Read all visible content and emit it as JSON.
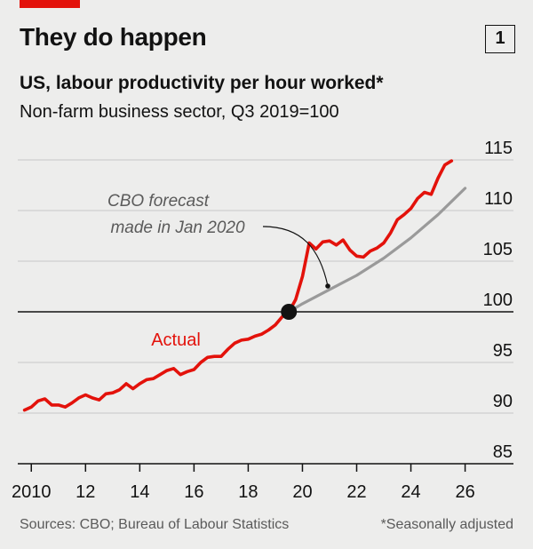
{
  "header": {
    "title": "They do happen",
    "chart_number": "1",
    "subtitle": "US, labour productivity per hour worked*",
    "unit": "Non-farm business sector, Q3 2019=100"
  },
  "footer": {
    "sources": "Sources: CBO; Bureau of Labour Statistics",
    "note": "*Seasonally adjusted"
  },
  "colors": {
    "actual": "#e3120b",
    "forecast": "#9a9a9a",
    "marker": "#121212",
    "background": "#ededec"
  },
  "chart_data": {
    "type": "line",
    "xlim": [
      2009.5,
      2026.8
    ],
    "ylim": [
      85,
      115
    ],
    "xticks": [
      2010,
      2012,
      2014,
      2016,
      2018,
      2020,
      2022,
      2024,
      2026
    ],
    "xtick_labels": [
      "2010",
      "12",
      "14",
      "16",
      "18",
      "20",
      "22",
      "24",
      "26"
    ],
    "yticks": [
      85,
      90,
      95,
      100,
      105,
      110,
      115
    ],
    "ytick_labels": [
      "85",
      "90",
      "95",
      "100",
      "105",
      "110",
      "115"
    ],
    "baseline": 100,
    "grid": true,
    "annotations": {
      "series_label": "Actual",
      "forecast_label_line1": "CBO forecast",
      "forecast_label_line2": "made in Jan 2020",
      "reference_point": {
        "x": 2019.5,
        "y": 100
      }
    },
    "series": [
      {
        "name": "Actual",
        "x": [
          2009.75,
          2010.0,
          2010.25,
          2010.5,
          2010.75,
          2011.0,
          2011.25,
          2011.5,
          2011.75,
          2012.0,
          2012.25,
          2012.5,
          2012.75,
          2013.0,
          2013.25,
          2013.5,
          2013.75,
          2014.0,
          2014.25,
          2014.5,
          2014.75,
          2015.0,
          2015.25,
          2015.5,
          2015.75,
          2016.0,
          2016.25,
          2016.5,
          2016.75,
          2017.0,
          2017.25,
          2017.5,
          2017.75,
          2018.0,
          2018.25,
          2018.5,
          2018.75,
          2019.0,
          2019.25,
          2019.5,
          2019.75,
          2020.0,
          2020.25,
          2020.5,
          2020.75,
          2021.0,
          2021.25,
          2021.5,
          2021.75,
          2022.0,
          2022.25,
          2022.5,
          2022.75,
          2023.0,
          2023.25,
          2023.5,
          2023.75,
          2024.0,
          2024.25,
          2024.5,
          2024.75,
          2025.0,
          2025.25,
          2025.5
        ],
        "y": [
          90.3,
          90.6,
          91.2,
          91.4,
          90.8,
          90.8,
          90.6,
          91.0,
          91.5,
          91.8,
          91.5,
          91.3,
          91.9,
          92.0,
          92.3,
          92.9,
          92.4,
          92.9,
          93.3,
          93.4,
          93.8,
          94.2,
          94.4,
          93.8,
          94.1,
          94.3,
          95.0,
          95.5,
          95.6,
          95.6,
          96.3,
          96.9,
          97.2,
          97.3,
          97.6,
          97.8,
          98.2,
          98.7,
          99.5,
          100.0,
          101.2,
          103.5,
          106.8,
          106.2,
          106.9,
          107.0,
          106.6,
          107.1,
          106.1,
          105.5,
          105.4,
          106.0,
          106.3,
          106.8,
          107.8,
          109.1,
          109.6,
          110.2,
          111.2,
          111.8,
          111.6,
          113.2,
          114.5,
          114.9
        ]
      },
      {
        "name": "CBO forecast made in Jan 2020",
        "x": [
          2019.5,
          2020.0,
          2021.0,
          2022.0,
          2023.0,
          2024.0,
          2025.0,
          2026.0
        ],
        "y": [
          100.0,
          100.8,
          102.2,
          103.6,
          105.3,
          107.3,
          109.6,
          112.2
        ]
      }
    ]
  }
}
